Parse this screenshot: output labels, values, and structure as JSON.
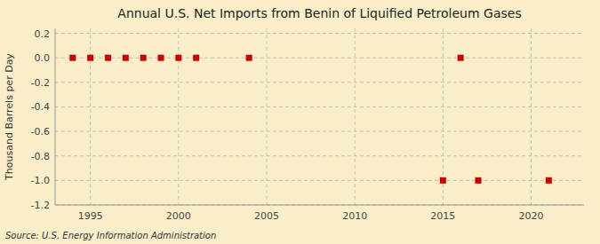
{
  "chart_data": {
    "type": "scatter",
    "title": "Annual U.S. Net Imports from Benin of Liquified Petroleum Gases",
    "ylabel": "Thousand Barrels per Day",
    "source": "Source: U.S. Energy Information Administration",
    "x": [
      1994,
      1995,
      1996,
      1997,
      1998,
      1999,
      2000,
      2001,
      2004,
      2015,
      2016,
      2017,
      2021
    ],
    "values": [
      0,
      0,
      0,
      0,
      0,
      0,
      0,
      0,
      0,
      -1,
      0,
      -1,
      -1
    ],
    "color": "#cc0000",
    "marker": "square",
    "xlim": [
      1993,
      2023
    ],
    "ylim": [
      -1.2,
      0.24
    ],
    "xticks": [
      1995,
      2000,
      2005,
      2010,
      2015,
      2020
    ],
    "yticks": [
      0.2,
      {
        "value": 0.0,
        "label": "0.0"
      },
      -0.2,
      -0.4,
      -0.6,
      -0.8,
      {
        "value": -1.0,
        "label": "-1.0"
      },
      -1.2
    ],
    "grid": true
  }
}
